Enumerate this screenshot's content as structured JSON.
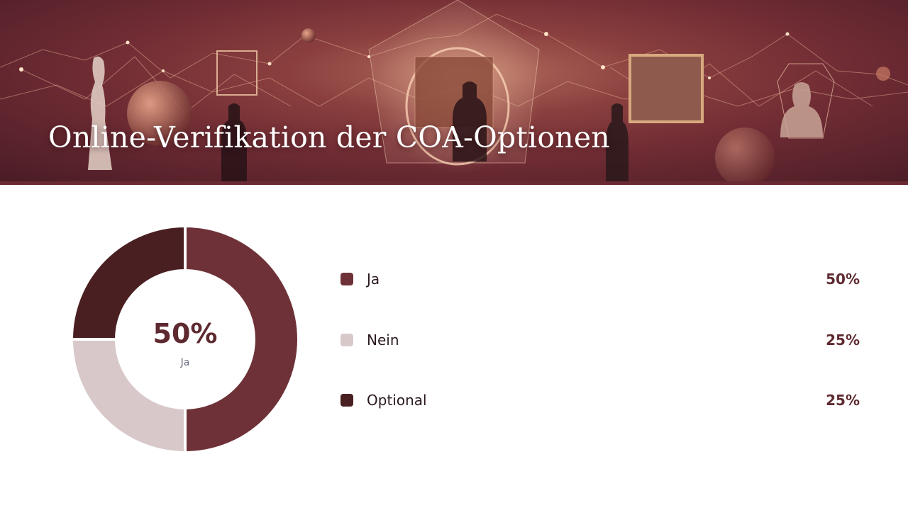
{
  "header": {
    "title": "Online-Verifikation der COA-Optionen"
  },
  "chart_data": {
    "type": "pie",
    "center_value": "50%",
    "center_label": "Ja",
    "series": [
      {
        "name": "Ja",
        "value": 50,
        "label": "50%",
        "color": "#6e3137"
      },
      {
        "name": "Nein",
        "value": 25,
        "label": "25%",
        "color": "#d8c8ca"
      },
      {
        "name": "Optional",
        "value": 25,
        "label": "25%",
        "color": "#4a1f22"
      }
    ]
  }
}
